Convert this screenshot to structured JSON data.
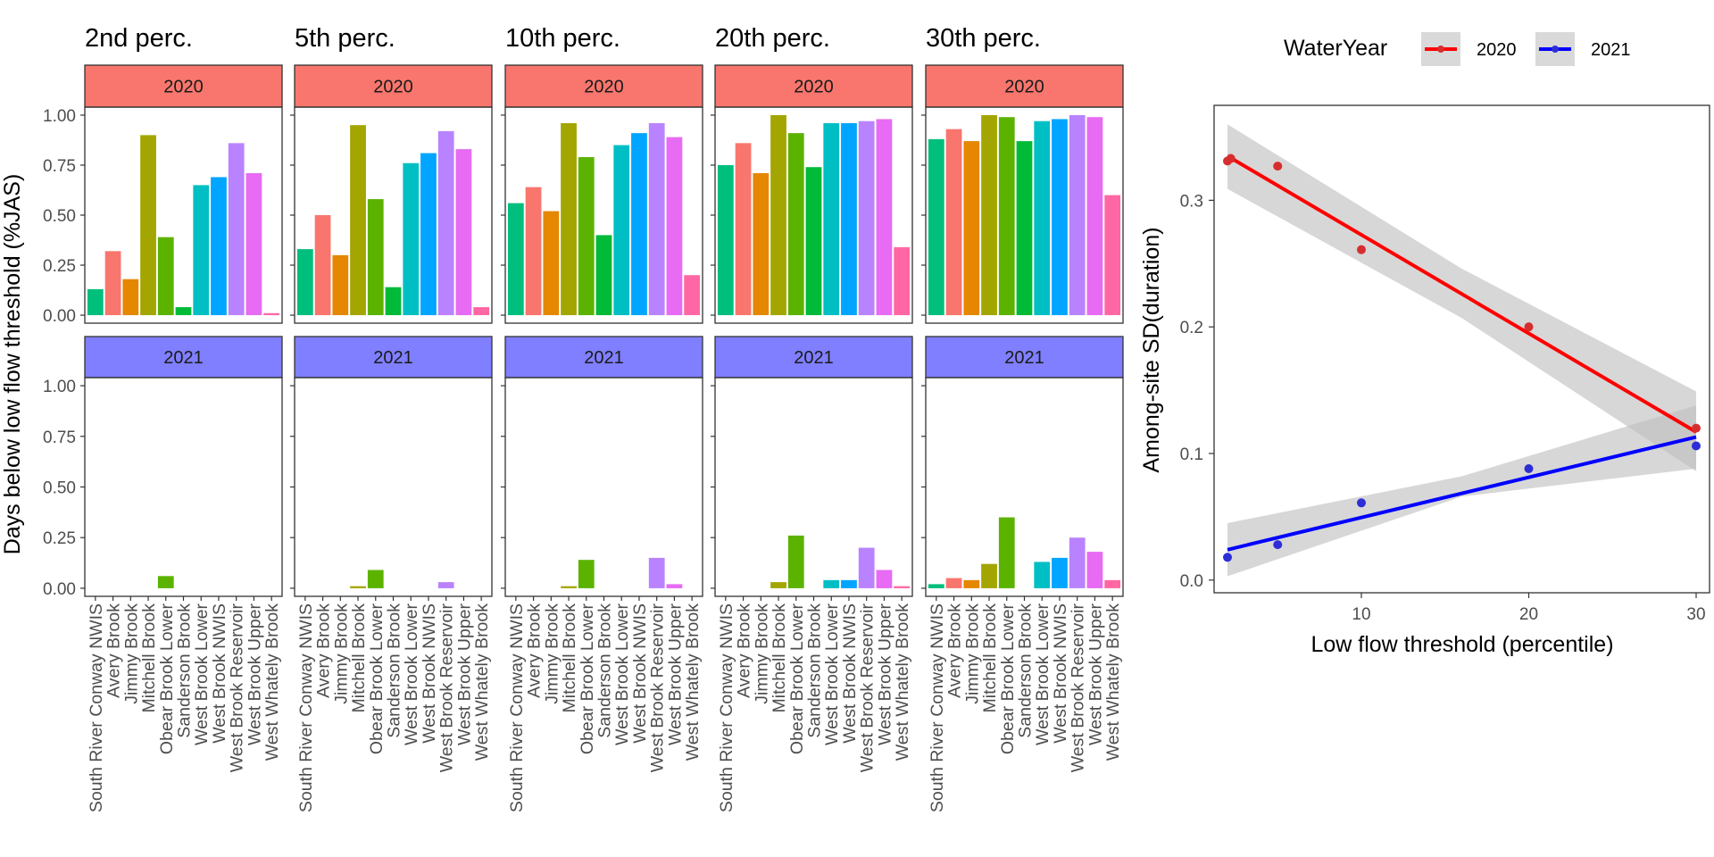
{
  "colors": {
    "strip_2020": "#F8766D",
    "strip_2021": "#7F7FFF",
    "sites": [
      "#00BF7D",
      "#F8766D",
      "#E58700",
      "#A3A500",
      "#5BB300",
      "#00BA38",
      "#00BFC4",
      "#00A5FF",
      "#B983FF",
      "#E76BF3",
      "#FF67A4"
    ],
    "line_2020": "#FF0000",
    "line_2021": "#0000FF",
    "point_2020": "#D62E2E",
    "point_2021": "#2E2ED6",
    "band": "#BEBEBE"
  },
  "chart_data": [
    {
      "type": "bar",
      "facet_columns": [
        "2nd perc.",
        "5th perc.",
        "10th perc.",
        "20th perc.",
        "30th perc."
      ],
      "facet_rows": [
        "2020",
        "2021"
      ],
      "categories": [
        "South River Conway NWIS",
        "Avery Brook",
        "Jimmy Brook",
        "Mitchell Brook",
        "Obear Brook Lower",
        "Sanderson Brook",
        "West Brook Lower",
        "West Brook NWIS",
        "West Brook Reservoir",
        "West Brook Upper",
        "West Whately Brook"
      ],
      "ylabel": "Days below low flow threshold (%JAS)",
      "ylim": [
        -0.04,
        1.04
      ],
      "yticks": [
        0,
        0.25,
        0.5,
        0.75,
        1
      ],
      "ytick_labels": [
        "0.00",
        "0.25",
        "0.50",
        "0.75",
        "1.00"
      ],
      "values": {
        "2020": [
          [
            0.13,
            0.32,
            0.18,
            0.9,
            0.39,
            0.04,
            0.65,
            0.69,
            0.86,
            0.71,
            0.01
          ],
          [
            0.33,
            0.5,
            0.3,
            0.95,
            0.58,
            0.14,
            0.76,
            0.81,
            0.92,
            0.83,
            0.04
          ],
          [
            0.56,
            0.64,
            0.52,
            0.96,
            0.79,
            0.4,
            0.85,
            0.91,
            0.96,
            0.89,
            0.2
          ],
          [
            0.75,
            0.86,
            0.71,
            1.0,
            0.91,
            0.74,
            0.96,
            0.96,
            0.97,
            0.98,
            0.34
          ],
          [
            0.88,
            0.93,
            0.87,
            1.0,
            0.99,
            0.87,
            0.97,
            0.98,
            1.0,
            0.99,
            0.6
          ]
        ],
        "2021": [
          [
            0,
            0,
            0,
            0,
            0.06,
            0,
            0,
            0,
            0,
            0,
            0
          ],
          [
            0,
            0,
            0,
            0.01,
            0.09,
            0,
            0,
            0,
            0.03,
            0,
            0
          ],
          [
            0,
            0,
            0,
            0.01,
            0.14,
            0,
            0,
            0,
            0.15,
            0.02,
            0
          ],
          [
            0,
            0,
            0,
            0.03,
            0.26,
            0,
            0.04,
            0.04,
            0.2,
            0.09,
            0.01
          ],
          [
            0.02,
            0.05,
            0.04,
            0.12,
            0.35,
            0,
            0.13,
            0.15,
            0.25,
            0.18,
            0.04
          ]
        ]
      }
    },
    {
      "type": "scatter",
      "xlabel": "Low flow threshold (percentile)",
      "ylabel": "Among-site SD(duration)",
      "xlim": [
        1.2,
        30.8
      ],
      "ylim": [
        -0.01,
        0.375
      ],
      "xticks": [
        10,
        20,
        30
      ],
      "yticks": [
        0,
        0.1,
        0.2,
        0.3
      ],
      "ytick_labels": [
        "0.0",
        "0.1",
        "0.2",
        "0.3"
      ],
      "legend": {
        "title": "WaterYear",
        "position": "top-right"
      },
      "series": [
        {
          "name": "2020",
          "x": [
            2,
            2.2,
            5,
            10,
            20,
            30
          ],
          "y": [
            0.331,
            0.333,
            0.327,
            0.261,
            0.2,
            0.12
          ],
          "fit": [
            [
              2,
              0.335
            ],
            [
              30,
              0.117
            ]
          ],
          "band_upper": [
            [
              2,
              0.36
            ],
            [
              16,
              0.246
            ],
            [
              30,
              0.149
            ]
          ],
          "band_lower": [
            [
              2,
              0.309
            ],
            [
              16,
              0.207
            ],
            [
              30,
              0.086
            ]
          ]
        },
        {
          "name": "2021",
          "x": [
            2,
            5,
            10,
            20,
            30
          ],
          "y": [
            0.018,
            0.028,
            0.061,
            0.088,
            0.106
          ],
          "fit": [
            [
              2,
              0.024
            ],
            [
              30,
              0.113
            ]
          ],
          "band_upper": [
            [
              2,
              0.045
            ],
            [
              16,
              0.082
            ],
            [
              30,
              0.138
            ]
          ],
          "band_lower": [
            [
              2,
              0.003
            ],
            [
              16,
              0.066
            ],
            [
              30,
              0.088
            ]
          ]
        }
      ]
    }
  ]
}
